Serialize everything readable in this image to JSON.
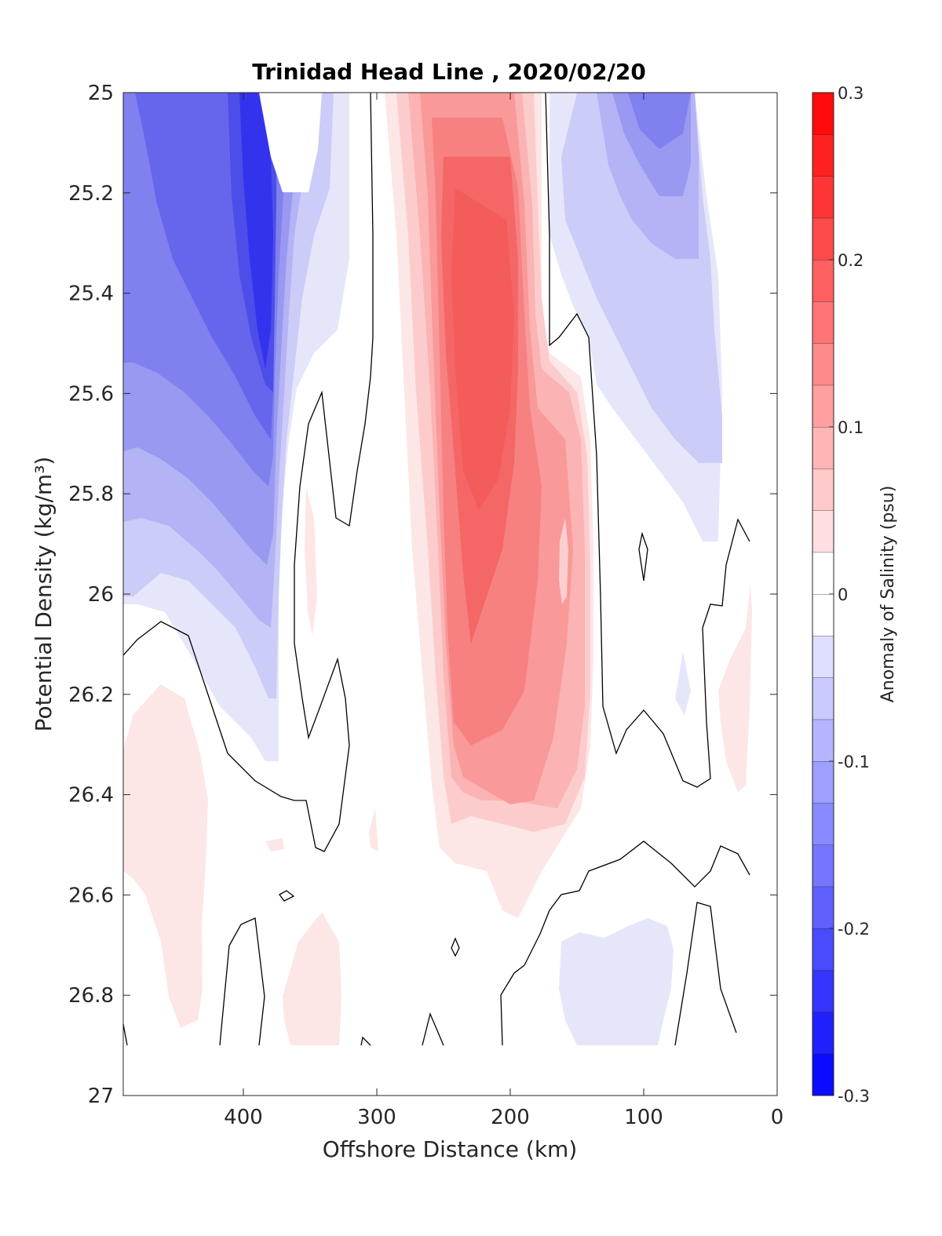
{
  "chart_data": {
    "type": "contour",
    "title": "Trinidad Head Line , 2020/02/20",
    "xlabel": "Offshore Distance (km)",
    "ylabel": "Potential Density (kg/m³)",
    "xlim": [
      490,
      0
    ],
    "ylim": [
      25,
      27
    ],
    "x_reversed": true,
    "y_reversed": true,
    "x_ticks": [
      400,
      300,
      200,
      100,
      0
    ],
    "y_ticks": [
      25,
      25.2,
      25.4,
      25.6,
      25.8,
      26,
      26.2,
      26.4,
      26.6,
      26.8,
      27
    ],
    "colorbar": {
      "label": "Anomaly of Salinity (psu)",
      "range": [
        -0.3,
        0.3
      ],
      "ticks": [
        -0.3,
        -0.2,
        -0.1,
        0,
        0.1,
        0.2,
        0.3
      ],
      "levels": [
        -0.3,
        -0.275,
        -0.25,
        -0.225,
        -0.2,
        -0.175,
        -0.15,
        -0.125,
        -0.1,
        -0.075,
        -0.05,
        -0.025,
        0,
        0.025,
        0.05,
        0.075,
        0.1,
        0.125,
        0.15,
        0.175,
        0.2,
        0.225,
        0.25,
        0.275,
        0.3
      ],
      "colormap": "blue-white-red",
      "negative_color": "#0000ff",
      "positive_color": "#ff0000"
    },
    "grid": false,
    "features": [
      {
        "name": "low-salinity core",
        "x": 385,
        "y": 25.5,
        "value": -0.25
      },
      {
        "name": "high-salinity core",
        "x": 215,
        "y": 25.55,
        "value": 0.15
      },
      {
        "name": "nearshore fresh patch",
        "x": 90,
        "y": 25.05,
        "value": -0.15
      },
      {
        "name": "deep fresh patch",
        "x": 100,
        "y": 26.8,
        "value": -0.05
      }
    ]
  }
}
